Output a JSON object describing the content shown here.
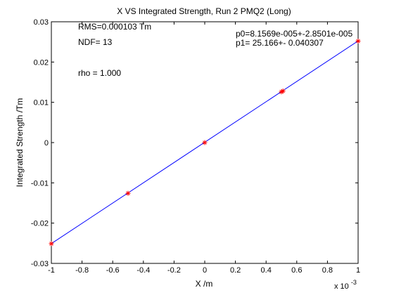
{
  "chart_data": {
    "type": "scatter",
    "title": "X VS Integrated Strength, Run 2 PMQ2 (Long)",
    "xlabel": "X /m",
    "ylabel": "Integrated Strength /Tm",
    "x_multiplier_label": "x 10",
    "x_multiplier_exponent": "-3",
    "xlim": [
      -1,
      1
    ],
    "ylim": [
      -0.03,
      0.03
    ],
    "x_ticks": [
      -1,
      -0.8,
      -0.6,
      -0.4,
      -0.2,
      0,
      0.2,
      0.4,
      0.6,
      0.8,
      1
    ],
    "x_tick_labels": [
      "-1",
      "-0.8",
      "-0.6",
      "-0.4",
      "-0.2",
      "0",
      "0.2",
      "0.4",
      "0.6",
      "0.8",
      "1"
    ],
    "y_ticks": [
      -0.03,
      -0.02,
      -0.01,
      0,
      0.01,
      0.02,
      0.03
    ],
    "y_tick_labels": [
      "-0.03",
      "-0.02",
      "-0.01",
      "0",
      "0.01",
      "0.02",
      "0.03"
    ],
    "grid": false,
    "series": [
      {
        "marker": "star",
        "color": "#ff0000",
        "x": [
          -1,
          -0.5,
          0,
          0.5,
          0.51,
          1
        ],
        "y": [
          -0.0251,
          -0.0126,
          0.0,
          0.0126,
          0.0128,
          0.0252
        ]
      }
    ],
    "fit_line": {
      "color": "#0000ff",
      "x": [
        -1,
        1
      ],
      "y": [
        -0.025084,
        0.025247
      ]
    },
    "annotations": {
      "rms": "RMS=0.000103 Tm",
      "ndf": "NDF=   13",
      "rho": "rho    =  1.000",
      "p0": "p0=8.1569e-005+-2.8501e-005",
      "p1": "p1=   25.166+- 0.040307"
    }
  }
}
